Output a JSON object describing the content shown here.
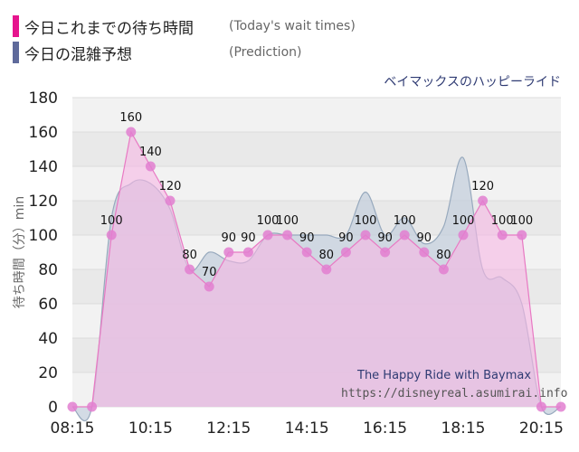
{
  "legend": {
    "today_label": "今日これまでの待ち時間",
    "today_note": "(Today's wait times)",
    "prediction_label": "今日の混雑予想",
    "prediction_note": "(Prediction)"
  },
  "title": "ベイマックスのハッピーライド",
  "credits": {
    "line1": "The Happy Ride with Baymax",
    "line2": "https://disneyreal.asumirai.info"
  },
  "colors": {
    "today_line": "#e879c3",
    "today_fill": "#f7b8e4",
    "today_marker": "#e27fd0",
    "prediction_line": "#97a9bd",
    "prediction_fill": "#c4cfdc",
    "swatch_today": "#e6158e",
    "swatch_prediction": "#5f6a9b",
    "plot_bg_a": "#f2f2f2",
    "plot_bg_b": "#e9e9e9"
  },
  "chart_data": {
    "type": "area",
    "title": "ベイマックスのハッピーライド",
    "ylabel": "待ち時間（分）min",
    "xlabel": "",
    "ylim": [
      0,
      180
    ],
    "yticks": [
      0,
      20,
      40,
      60,
      80,
      100,
      120,
      140,
      160,
      180
    ],
    "xticks": [
      "08:15",
      "10:15",
      "12:15",
      "14:15",
      "16:15",
      "18:15",
      "20:15"
    ],
    "grid": true,
    "series": [
      {
        "name": "今日これまでの待ち時間",
        "x": [
          "08:15",
          "08:45",
          "09:15",
          "09:45",
          "10:15",
          "10:45",
          "11:15",
          "11:45",
          "12:15",
          "12:45",
          "13:15",
          "13:45",
          "14:15",
          "14:45",
          "15:15",
          "15:45",
          "16:15",
          "16:45",
          "17:15",
          "17:45",
          "18:15",
          "18:45",
          "19:15",
          "19:45",
          "20:15",
          "20:45"
        ],
        "values": [
          0,
          0,
          100,
          160,
          140,
          120,
          80,
          70,
          90,
          90,
          100,
          100,
          90,
          80,
          90,
          100,
          90,
          100,
          90,
          80,
          100,
          120,
          100,
          100,
          0,
          0
        ],
        "labels": [
          "",
          "",
          "100",
          "160",
          "140",
          "120",
          "80",
          "70",
          "90",
          "90",
          "100",
          "100",
          "90",
          "80",
          "90",
          "100",
          "90",
          "100",
          "90",
          "80",
          "100",
          "120",
          "100",
          "100",
          "",
          ""
        ]
      },
      {
        "name": "今日の混雑予想",
        "x": [
          "08:15",
          "08:45",
          "09:15",
          "09:45",
          "10:15",
          "10:45",
          "11:15",
          "11:45",
          "12:15",
          "12:45",
          "13:15",
          "13:45",
          "14:15",
          "14:45",
          "15:15",
          "15:45",
          "16:15",
          "16:45",
          "17:15",
          "17:45",
          "18:15",
          "18:45",
          "19:15",
          "19:45",
          "20:15",
          "20:45"
        ],
        "values": [
          0,
          0,
          110,
          130,
          130,
          115,
          80,
          90,
          85,
          85,
          100,
          100,
          100,
          100,
          100,
          125,
          100,
          110,
          95,
          105,
          145,
          80,
          75,
          60,
          0,
          0
        ]
      }
    ]
  }
}
